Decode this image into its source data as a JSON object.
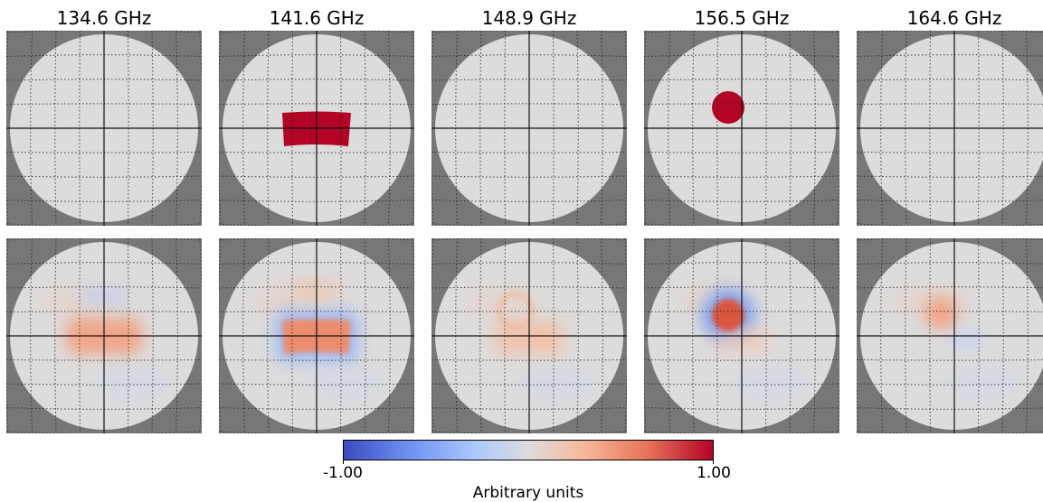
{
  "columns": [
    "134.6 GHz",
    "141.6 GHz",
    "148.9 GHz",
    "156.5 GHz",
    "164.6 GHz"
  ],
  "colorbar": {
    "min_label": "-1.00",
    "max_label": "1.00",
    "label": "Arbitrary units",
    "colors": [
      "#3b4cc0",
      "#dddcdc",
      "#b40426"
    ]
  },
  "panels": {
    "top": [
      {
        "feature": "none"
      },
      {
        "feature": "rectangle",
        "value": 1.0
      },
      {
        "feature": "none"
      },
      {
        "feature": "disk",
        "value": 1.0
      },
      {
        "feature": "none"
      }
    ],
    "bottom": [
      {
        "feature": "diffuse rectangle",
        "value": 0.35
      },
      {
        "feature": "rectangle with blue halo",
        "value": 0.55
      },
      {
        "feature": "faint ring and patch",
        "value": 0.15
      },
      {
        "feature": "disk with blue halo",
        "value": 0.7
      },
      {
        "feature": "small diffuse disk",
        "value": 0.35
      }
    ]
  }
}
